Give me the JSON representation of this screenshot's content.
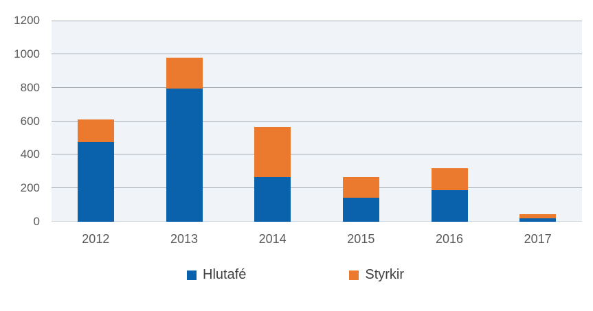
{
  "chart_data": {
    "type": "bar",
    "stacked": true,
    "title": "",
    "xlabel": "",
    "ylabel": "",
    "categories": [
      "2012",
      "2013",
      "2014",
      "2015",
      "2016",
      "2017"
    ],
    "series": [
      {
        "name": "Hlutafé",
        "color": "#0A61AC",
        "values": [
          475,
          795,
          265,
          145,
          190,
          20
        ]
      },
      {
        "name": "Styrkir",
        "color": "#EC7A2E",
        "values": [
          135,
          185,
          300,
          120,
          130,
          25
        ]
      }
    ],
    "totals": [
      610,
      980,
      565,
      265,
      320,
      45
    ],
    "yticks": [
      0,
      200,
      400,
      600,
      800,
      1000,
      1200
    ],
    "ylim": [
      0,
      1200
    ],
    "grid": true,
    "legend_position": "bottom",
    "plot_bg": "#F0F4F8",
    "gridline_color": "#A6ACB4",
    "baseline_color": "#D6DBE1",
    "axis_text_color": "#595959",
    "legend_text_color": "#404040"
  }
}
